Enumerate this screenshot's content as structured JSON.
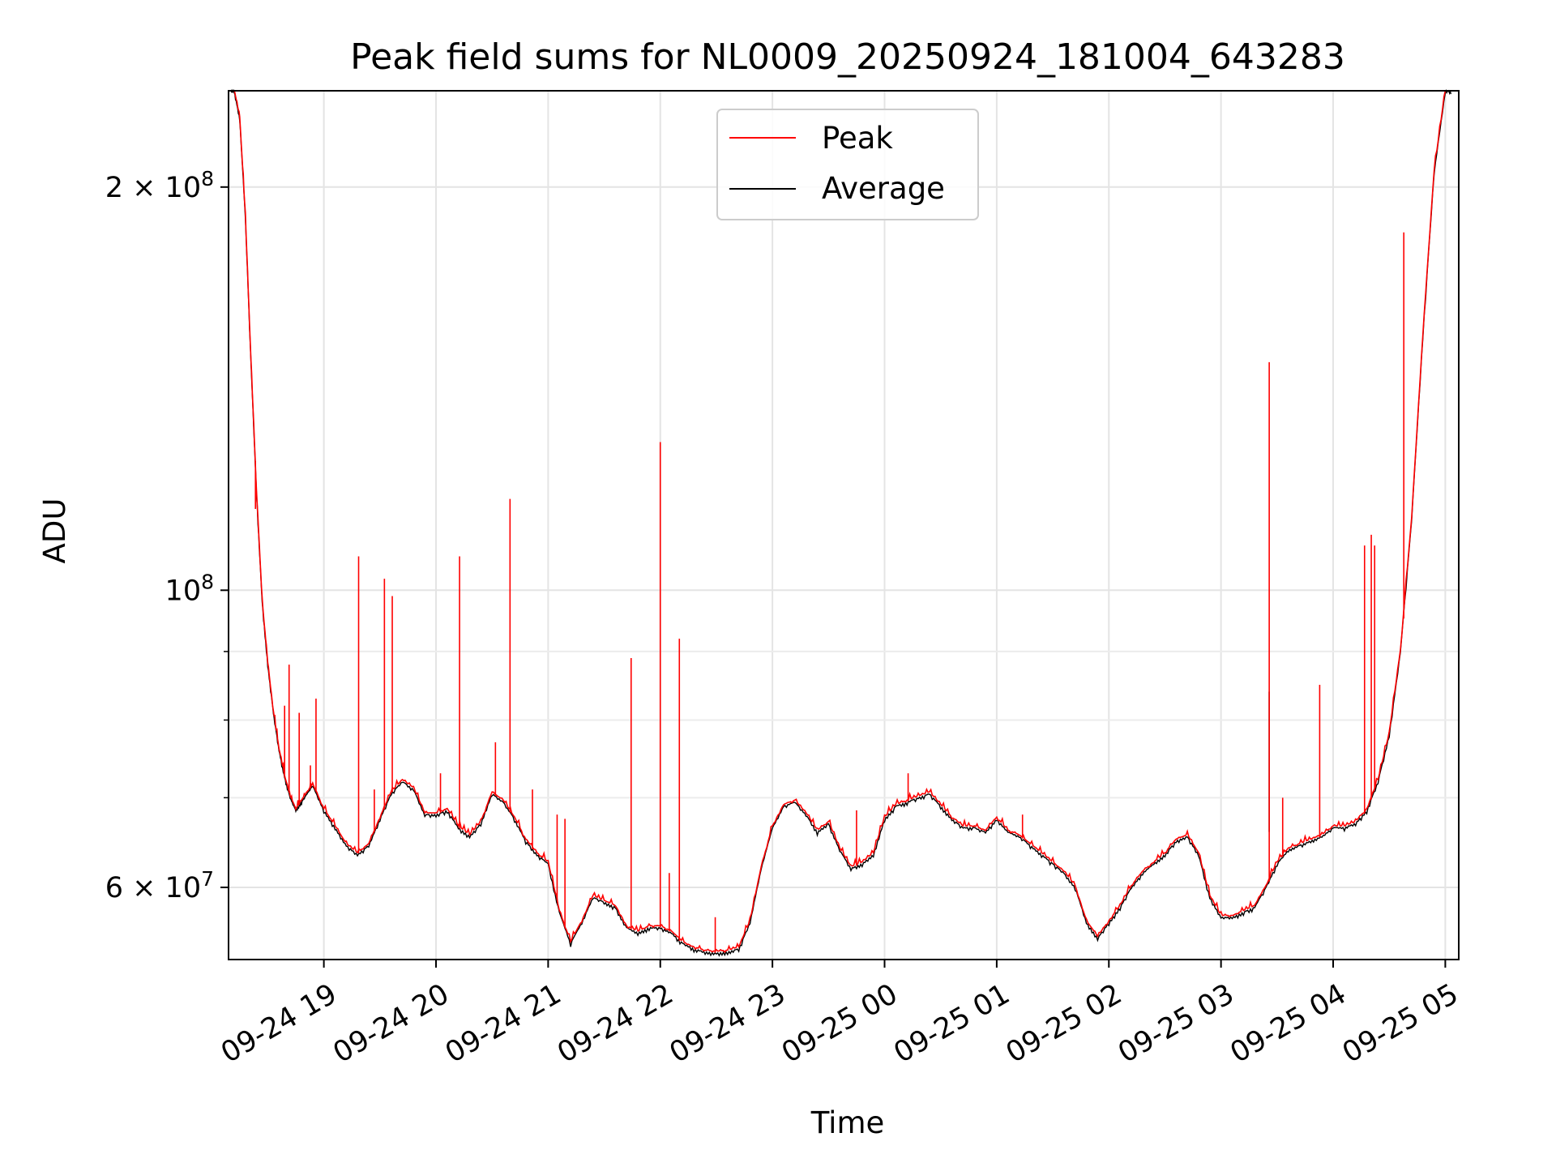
{
  "chart_data": {
    "type": "line",
    "title": "Peak field sums for NL0009_20250924_181004_643283",
    "xlabel": "Time",
    "ylabel": "ADU",
    "yscale": "log",
    "x_unit": "hours since 09-24 18:00",
    "xlim": [
      0.15,
      11.12
    ],
    "ylim": [
      53000000,
      236000000
    ],
    "grid": true,
    "legend_position": "top-center",
    "x_ticks": [
      {
        "value": 1,
        "label": "09-24 19"
      },
      {
        "value": 2,
        "label": "09-24 20"
      },
      {
        "value": 3,
        "label": "09-24 21"
      },
      {
        "value": 4,
        "label": "09-24 22"
      },
      {
        "value": 5,
        "label": "09-24 23"
      },
      {
        "value": 6,
        "label": "09-25 00"
      },
      {
        "value": 7,
        "label": "09-25 01"
      },
      {
        "value": 8,
        "label": "09-25 02"
      },
      {
        "value": 9,
        "label": "09-25 03"
      },
      {
        "value": 10,
        "label": "09-25 04"
      },
      {
        "value": 11,
        "label": "09-25 05"
      }
    ],
    "y_ticks_major": [
      {
        "value": 60000000,
        "mantissa": "6",
        "exponent": "7"
      },
      {
        "value": 100000000,
        "mantissa": "",
        "exponent": "8"
      },
      {
        "value": 200000000,
        "mantissa": "2",
        "exponent": "8"
      }
    ],
    "y_ticks_minor": [
      70000000,
      80000000,
      90000000
    ],
    "series": [
      {
        "name": "Average",
        "color": "#000000",
        "x": [
          0.17,
          0.2,
          0.25,
          0.3,
          0.35,
          0.4,
          0.45,
          0.5,
          0.55,
          0.6,
          0.65,
          0.7,
          0.75,
          0.8,
          0.85,
          0.9,
          1.0,
          1.1,
          1.2,
          1.3,
          1.4,
          1.5,
          1.6,
          1.7,
          1.8,
          1.9,
          2.0,
          2.1,
          2.2,
          2.3,
          2.4,
          2.5,
          2.6,
          2.7,
          2.8,
          2.9,
          3.0,
          3.1,
          3.2,
          3.3,
          3.4,
          3.5,
          3.6,
          3.7,
          3.8,
          3.9,
          4.0,
          4.1,
          4.2,
          4.3,
          4.4,
          4.5,
          4.6,
          4.7,
          4.8,
          4.9,
          5.0,
          5.1,
          5.2,
          5.3,
          5.4,
          5.5,
          5.6,
          5.7,
          5.8,
          5.9,
          6.0,
          6.1,
          6.2,
          6.3,
          6.4,
          6.5,
          6.6,
          6.7,
          6.8,
          6.9,
          7.0,
          7.1,
          7.2,
          7.3,
          7.4,
          7.5,
          7.6,
          7.7,
          7.8,
          7.9,
          8.0,
          8.1,
          8.2,
          8.3,
          8.4,
          8.5,
          8.6,
          8.7,
          8.8,
          8.9,
          9.0,
          9.1,
          9.2,
          9.3,
          9.4,
          9.5,
          9.6,
          9.7,
          9.8,
          9.9,
          10.0,
          10.1,
          10.2,
          10.3,
          10.4,
          10.5,
          10.6,
          10.7,
          10.8,
          10.9,
          11.0,
          11.05
        ],
        "values": [
          236000000,
          236000000,
          225000000,
          190000000,
          148000000,
          118000000,
          98000000,
          88000000,
          81000000,
          76000000,
          72500000,
          70000000,
          68500000,
          69500000,
          70500000,
          71500000,
          68500000,
          66500000,
          64500000,
          63500000,
          64500000,
          67500000,
          70500000,
          72000000,
          71000000,
          68000000,
          68000000,
          68500000,
          66500000,
          65500000,
          67000000,
          70500000,
          69500000,
          67500000,
          65000000,
          63500000,
          62500000,
          57500000,
          54500000,
          56500000,
          59000000,
          58500000,
          58000000,
          56000000,
          55500000,
          56000000,
          56000000,
          55500000,
          54500000,
          54000000,
          53700000,
          53600000,
          53700000,
          54000000,
          56500000,
          62000000,
          66500000,
          69000000,
          69500000,
          68000000,
          66000000,
          67000000,
          64000000,
          62000000,
          62500000,
          63500000,
          67500000,
          69000000,
          69500000,
          70000000,
          70500000,
          69000000,
          67500000,
          66500000,
          66500000,
          66000000,
          67500000,
          66000000,
          65500000,
          64500000,
          63500000,
          62500000,
          61500000,
          60000000,
          56500000,
          55000000,
          56500000,
          58000000,
          60000000,
          61500000,
          62500000,
          63500000,
          65000000,
          65500000,
          63500000,
          59000000,
          57000000,
          57000000,
          57500000,
          58000000,
          60000000,
          62500000,
          64000000,
          64500000,
          65000000,
          65500000,
          66500000,
          66500000,
          67000000,
          68500000,
          72000000,
          78000000,
          90000000,
          113000000,
          155000000,
          205000000,
          236000000,
          236000000
        ]
      },
      {
        "name": "Peak",
        "color": "#ff0000",
        "spikes": [
          {
            "x": 0.39,
            "value": 115000000
          },
          {
            "x": 0.65,
            "value": 82000000
          },
          {
            "x": 0.69,
            "value": 88000000
          },
          {
            "x": 0.78,
            "value": 81000000
          },
          {
            "x": 0.88,
            "value": 74000000
          },
          {
            "x": 0.93,
            "value": 83000000
          },
          {
            "x": 1.31,
            "value": 106000000
          },
          {
            "x": 1.45,
            "value": 71000000
          },
          {
            "x": 1.54,
            "value": 102000000
          },
          {
            "x": 1.61,
            "value": 99000000
          },
          {
            "x": 2.04,
            "value": 73000000
          },
          {
            "x": 2.21,
            "value": 106000000
          },
          {
            "x": 2.53,
            "value": 77000000
          },
          {
            "x": 2.66,
            "value": 117000000
          },
          {
            "x": 2.86,
            "value": 71000000
          },
          {
            "x": 3.08,
            "value": 68000000
          },
          {
            "x": 3.15,
            "value": 67500000
          },
          {
            "x": 3.74,
            "value": 89000000
          },
          {
            "x": 4.0,
            "value": 129000000
          },
          {
            "x": 4.08,
            "value": 61500000
          },
          {
            "x": 4.17,
            "value": 92000000
          },
          {
            "x": 4.49,
            "value": 57000000
          },
          {
            "x": 5.75,
            "value": 68500000
          },
          {
            "x": 6.21,
            "value": 73000000
          },
          {
            "x": 7.23,
            "value": 68000000
          },
          {
            "x": 9.43,
            "value": 148000000
          },
          {
            "x": 9.55,
            "value": 70000000
          },
          {
            "x": 9.88,
            "value": 85000000
          },
          {
            "x": 10.28,
            "value": 108000000
          },
          {
            "x": 10.34,
            "value": 110000000
          },
          {
            "x": 10.37,
            "value": 108000000
          },
          {
            "x": 10.63,
            "value": 185000000
          }
        ]
      }
    ]
  }
}
